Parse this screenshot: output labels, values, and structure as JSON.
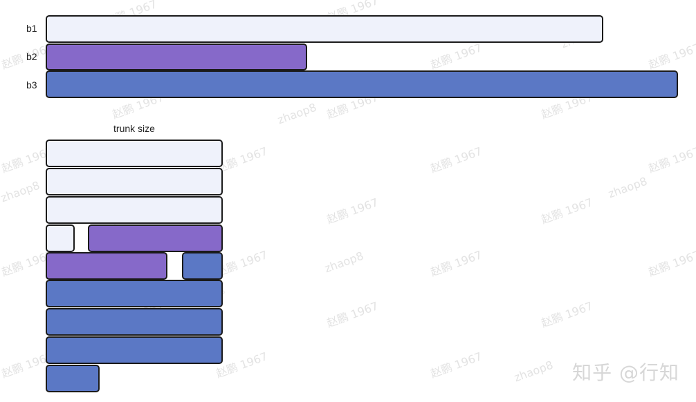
{
  "buffers": [
    {
      "label": "b1",
      "color": "light"
    },
    {
      "label": "b2",
      "color": "purple"
    },
    {
      "label": "b3",
      "color": "blue"
    }
  ],
  "trunk": {
    "title": "trunk size"
  },
  "colors": {
    "light": "#eff2fb",
    "purple": "#8669c9",
    "blue": "#5b78c5",
    "border": "#1a1a1a"
  },
  "watermarks": {
    "name_text": "赵鹏 1967",
    "handle_text": "zhaop8"
  },
  "branding": {
    "text": "知乎 @行知"
  }
}
